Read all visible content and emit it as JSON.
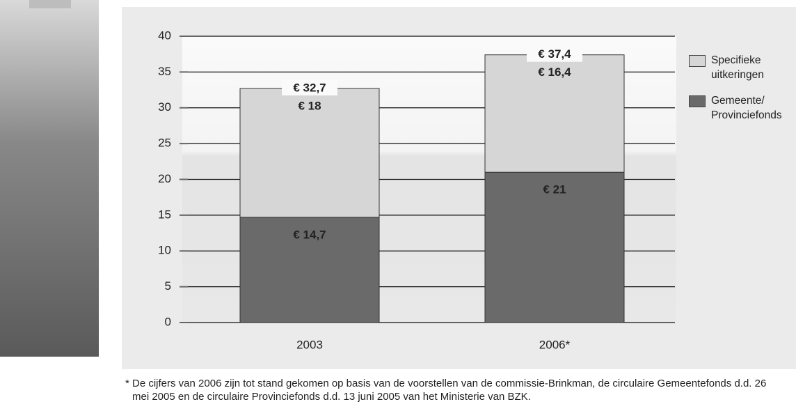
{
  "chart_data": {
    "type": "stacked-bar",
    "categories": [
      "2003",
      "2006*"
    ],
    "series": [
      {
        "name": "Gemeente/ Provinciefonds",
        "color": "#6a6a6a",
        "values": [
          14.7,
          21
        ],
        "value_labels": [
          "€ 14,7",
          "€ 21"
        ]
      },
      {
        "name": "Specifieke uitkeringen",
        "color": "#d6d6d6",
        "values": [
          18,
          16.4
        ],
        "value_labels": [
          "€ 18",
          "€ 16,4"
        ]
      }
    ],
    "totals": [
      {
        "value": 32.7,
        "label": "€ 32,7"
      },
      {
        "value": 37.4,
        "label": "€ 37,4"
      }
    ],
    "ylim": [
      0,
      40
    ],
    "yticks": [
      0,
      5,
      10,
      15,
      20,
      25,
      30,
      35,
      40
    ],
    "grid": true,
    "footnote": "* De cijfers van 2006 zijn tot stand gekomen op basis van de voorstellen van de commissie-Brinkman, de circulaire Gemeentefonds d.d. 26 mei 2005 en de circulaire Provinciefonds d.d. 13 juni 2005 van het Ministerie van BZK."
  }
}
